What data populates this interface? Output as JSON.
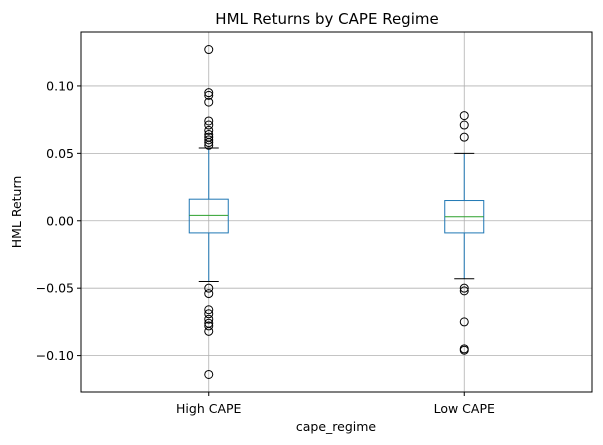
{
  "chart_data": {
    "type": "box",
    "title": "HML Returns by CAPE Regime",
    "xlabel": "cape_regime",
    "ylabel": "HML Return",
    "ylim": [
      -0.127,
      0.14
    ],
    "yticks": [
      -0.1,
      -0.05,
      0.0,
      0.05,
      0.1
    ],
    "ytick_labels": [
      "−0.10",
      "−0.05",
      "0.00",
      "0.05",
      "0.10"
    ],
    "grid": true,
    "colors": {
      "box": "#1f77b4",
      "median": "#2ca02c",
      "whisker_cap": "#000000",
      "grid": "#b0b0b0",
      "outlier": "#000000"
    },
    "categories": [
      "High CAPE",
      "Low CAPE"
    ],
    "boxes": [
      {
        "name": "High CAPE",
        "whisker_low": -0.045,
        "q1": -0.009,
        "median": 0.004,
        "q3": 0.016,
        "whisker_high": 0.054,
        "outliers": [
          0.127,
          0.095,
          0.093,
          0.088,
          0.074,
          0.071,
          0.067,
          0.064,
          0.062,
          0.06,
          0.058,
          0.056,
          -0.05,
          -0.054,
          -0.066,
          -0.069,
          -0.073,
          -0.076,
          -0.078,
          -0.082,
          -0.114
        ]
      },
      {
        "name": "Low CAPE",
        "whisker_low": -0.043,
        "q1": -0.009,
        "median": 0.003,
        "q3": 0.015,
        "whisker_high": 0.05,
        "outliers": [
          0.078,
          0.071,
          0.062,
          -0.05,
          -0.052,
          -0.075,
          -0.095,
          -0.096
        ]
      }
    ]
  }
}
